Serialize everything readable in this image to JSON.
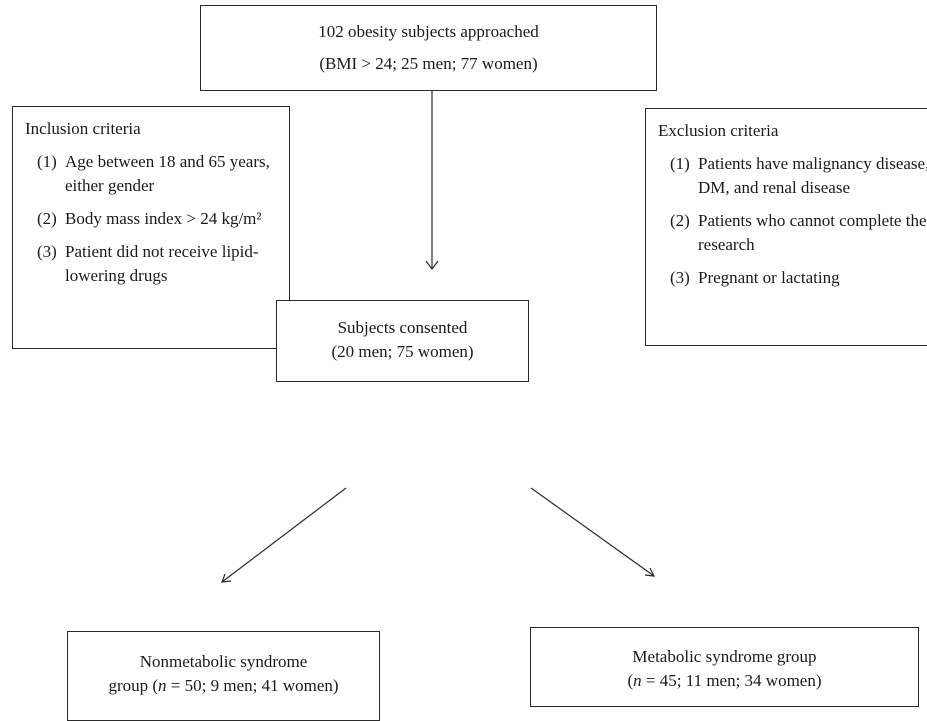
{
  "top": {
    "line1": "102 obesity subjects approached",
    "line2": "(BMI > 24; 25 men; 77 women)"
  },
  "inclusion": {
    "title": "Inclusion criteria",
    "items": [
      {
        "num": "(1)",
        "text": "Age between 18 and 65 years, either gender"
      },
      {
        "num": "(2)",
        "text": "Body mass index > 24 kg/m²"
      },
      {
        "num": "(3)",
        "text": "Patient did not receive lipid-lowering drugs"
      }
    ]
  },
  "exclusion": {
    "title": "Exclusion criteria",
    "items": [
      {
        "num": "(1)",
        "text": "Patients have malignancy disease, DM, and renal disease"
      },
      {
        "num": "(2)",
        "text": "Patients who cannot complete the research"
      },
      {
        "num": "(3)",
        "text": "Pregnant or lactating"
      }
    ]
  },
  "consented": {
    "line1": "Subjects consented",
    "line2": "(20 men; 75 women)"
  },
  "nonmetabolic": {
    "line1": "Nonmetabolic syndrome",
    "line2_prefix": "group (",
    "n_symbol": "n",
    "line2_suffix": " = 50; 9 men; 41 women)"
  },
  "metabolic": {
    "line1": "Metabolic syndrome group",
    "line2_prefix": "(",
    "n_symbol": "n",
    "line2_suffix": " = 45; 11 men; 34 women)"
  }
}
